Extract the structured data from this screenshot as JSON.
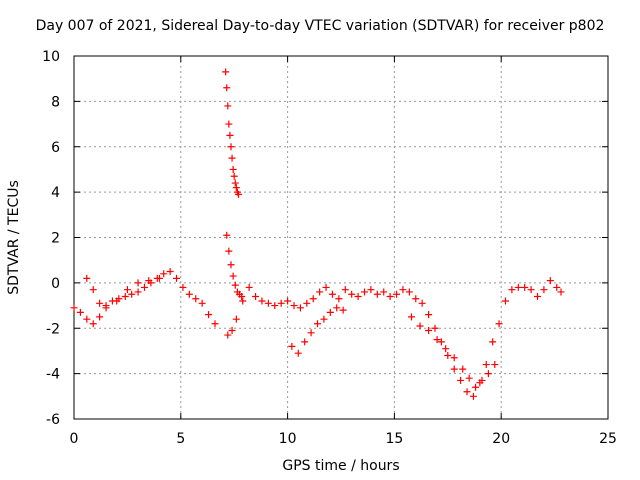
{
  "chart_data": {
    "type": "scatter",
    "title": "Day 007 of 2021, Sidereal Day-to-day VTEC variation (SDTVAR) for receiver p802",
    "xlabel": "GPS time / hours",
    "ylabel": "SDTVAR / TECUs",
    "xlim": [
      0,
      25
    ],
    "ylim": [
      -6,
      10
    ],
    "xticks": [
      0,
      5,
      10,
      15,
      20,
      25
    ],
    "yticks": [
      -6,
      -4,
      -2,
      0,
      2,
      4,
      6,
      8,
      10
    ],
    "grid": true,
    "marker": "+",
    "color": "#ff0000",
    "series": [
      {
        "name": "SDTVAR",
        "x": [
          0.0,
          0.3,
          0.6,
          0.9,
          1.2,
          1.5,
          1.8,
          2.1,
          2.4,
          2.7,
          3.0,
          3.3,
          3.6,
          3.9,
          4.2,
          4.5,
          4.8,
          5.1,
          5.4,
          5.7,
          6.0,
          6.3,
          6.6,
          7.1,
          7.15,
          7.2,
          7.25,
          7.3,
          7.35,
          7.4,
          7.45,
          7.5,
          7.55,
          7.6,
          7.65,
          7.7,
          7.15,
          7.25,
          7.35,
          7.45,
          7.55,
          7.65,
          7.75,
          7.85,
          7.2,
          7.4,
          7.6,
          7.9,
          8.2,
          8.5,
          8.8,
          9.1,
          9.4,
          9.7,
          10.0,
          10.3,
          10.6,
          10.9,
          11.2,
          11.5,
          11.8,
          12.1,
          12.4,
          12.7,
          13.0,
          13.3,
          13.6,
          13.9,
          14.2,
          14.5,
          14.8,
          15.1,
          15.4,
          15.7,
          16.0,
          16.3,
          16.6,
          16.9,
          17.2,
          17.5,
          17.8,
          18.1,
          18.4,
          18.7,
          19.0,
          19.3,
          19.6,
          19.9,
          20.2,
          20.5,
          20.8,
          21.1,
          21.4,
          21.7,
          22.0,
          22.3,
          22.6,
          22.8,
          10.2,
          10.5,
          10.8,
          11.1,
          11.4,
          11.7,
          12.0,
          12.3,
          12.6,
          15.8,
          16.2,
          16.6,
          17.0,
          17.4,
          17.8,
          18.2,
          18.5,
          18.8,
          19.1,
          19.4,
          19.7,
          0.6,
          0.9,
          1.2,
          1.5,
          2.0,
          2.5,
          3.0,
          3.5,
          4.0
        ],
        "y": [
          -1.1,
          -1.3,
          -1.6,
          -1.8,
          -1.5,
          -1.0,
          -0.8,
          -0.7,
          -0.6,
          -0.5,
          -0.4,
          -0.2,
          0.0,
          0.2,
          0.4,
          0.5,
          0.2,
          -0.2,
          -0.5,
          -0.7,
          -0.9,
          -1.4,
          -1.8,
          9.3,
          8.6,
          7.8,
          7.0,
          6.5,
          6.0,
          5.5,
          5.0,
          4.7,
          4.4,
          4.2,
          4.0,
          3.9,
          2.1,
          1.4,
          0.8,
          0.3,
          -0.1,
          -0.4,
          -0.5,
          -0.6,
          -2.3,
          -2.1,
          -1.6,
          -0.8,
          -0.2,
          -0.6,
          -0.8,
          -0.9,
          -1.0,
          -0.9,
          -0.8,
          -1.0,
          -1.1,
          -0.9,
          -0.7,
          -0.4,
          -0.2,
          -0.5,
          -0.7,
          -0.3,
          -0.5,
          -0.6,
          -0.4,
          -0.3,
          -0.5,
          -0.4,
          -0.6,
          -0.5,
          -0.3,
          -0.4,
          -0.7,
          -0.9,
          -1.4,
          -2.0,
          -2.6,
          -3.2,
          -3.8,
          -4.3,
          -4.8,
          -5.0,
          -4.4,
          -3.6,
          -2.6,
          -1.8,
          -0.8,
          -0.3,
          -0.2,
          -0.2,
          -0.3,
          -0.6,
          -0.3,
          0.1,
          -0.2,
          -0.4,
          -2.8,
          -3.1,
          -2.6,
          -2.2,
          -1.8,
          -1.6,
          -1.3,
          -1.1,
          -1.2,
          -1.5,
          -1.9,
          -2.1,
          -2.5,
          -2.9,
          -3.3,
          -3.8,
          -4.2,
          -4.6,
          -4.3,
          -4.0,
          -3.6,
          0.2,
          -0.3,
          -0.9,
          -1.1,
          -0.8,
          -0.3,
          0.0,
          0.1,
          0.2
        ]
      }
    ]
  }
}
